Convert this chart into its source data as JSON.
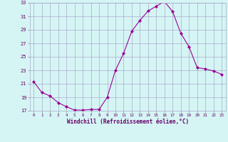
{
  "x": [
    0,
    1,
    2,
    3,
    4,
    5,
    6,
    7,
    8,
    9,
    10,
    11,
    12,
    13,
    14,
    15,
    16,
    17,
    18,
    19,
    20,
    21,
    22,
    23
  ],
  "y": [
    21.3,
    19.7,
    19.2,
    18.2,
    17.6,
    17.1,
    17.1,
    17.2,
    17.2,
    19.0,
    23.0,
    25.5,
    28.8,
    30.4,
    31.8,
    32.5,
    33.2,
    31.7,
    28.5,
    26.5,
    23.4,
    23.2,
    22.9,
    22.4
  ],
  "line_color": "#990099",
  "marker_color": "#990099",
  "bg_color": "#d5f5f5",
  "grid_color": "#aaaacc",
  "xlabel": "Windchill (Refroidissement éolien,°C)",
  "xlabel_color": "#660066",
  "tick_color": "#660066",
  "ylim": [
    17,
    33
  ],
  "yticks": [
    17,
    19,
    21,
    23,
    25,
    27,
    29,
    31,
    33
  ],
  "xticks": [
    0,
    1,
    2,
    3,
    4,
    5,
    6,
    7,
    8,
    9,
    10,
    11,
    12,
    13,
    14,
    15,
    16,
    17,
    18,
    19,
    20,
    21,
    22,
    23
  ]
}
